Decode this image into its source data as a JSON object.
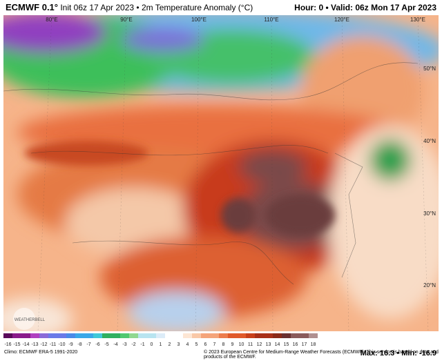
{
  "header": {
    "model": "ECMWF 0.1°",
    "subtitle": "Init 06z 17 Apr 2023 • 2m Temperature Anomaly (°C)",
    "valid": "Hour: 0 • Valid: 06z Mon 17 Apr 2023"
  },
  "map": {
    "lon_labels": [
      "80°E",
      "90°E",
      "100°E",
      "110°E",
      "120°E",
      "130°E"
    ],
    "lat_labels": [
      "50°N",
      "40°N",
      "30°N",
      "20°N"
    ],
    "logo": "WEATHERBELL"
  },
  "colorbar": {
    "labels": [
      -16,
      -15,
      -14,
      -13,
      -12,
      -11,
      -10,
      -9,
      -8,
      -7,
      -6,
      -5,
      -4,
      -3,
      -2,
      -1,
      0,
      1,
      2,
      3,
      4,
      5,
      6,
      7,
      8,
      9,
      10,
      11,
      12,
      13,
      14,
      15,
      16,
      17,
      18
    ]
  },
  "footer": {
    "climo": "Climo: ECMWF ERA-5 1991-2020",
    "copyright": "© 2023 European Centre for Medium-Range Weather Forecasts (ECMWF). This service is based on data and products of the ECMWF.",
    "stats": "Max: 16.3 • Min: -16.9"
  }
}
